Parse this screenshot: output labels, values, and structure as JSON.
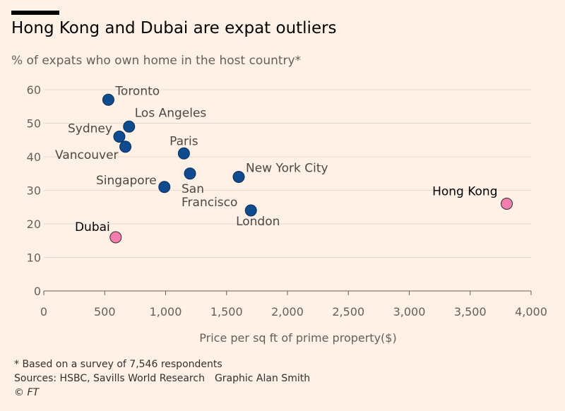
{
  "title": "Hong Kong and Dubai are expat outliers",
  "subtitle": "% of expats who own home in the host country*",
  "footer": {
    "note": "* Based on a survey of 7,546 respondents",
    "sources": "Sources: HSBC, Savills World Research",
    "credit": "Graphic Alan Smith",
    "copyright": "© FT"
  },
  "colors": {
    "background": "#fff1e5",
    "regular_point": "#0f4b8f",
    "outlier_point": "#f27eb0",
    "grid": "#e6d9ce",
    "axis_text": "#66605c"
  },
  "chart_data": {
    "type": "scatter",
    "xlabel": "Price per sq ft of prime property($)",
    "ylabel": "",
    "xlim": [
      0,
      4000
    ],
    "ylim": [
      0,
      60
    ],
    "x_ticks": [
      0,
      500,
      1000,
      1500,
      2000,
      2500,
      3000,
      3500,
      4000
    ],
    "x_tick_labels": [
      "0",
      "500",
      "1,000",
      "1,500",
      "2,000",
      "2,500",
      "3,000",
      "3,500",
      "4,000"
    ],
    "y_ticks": [
      0,
      10,
      20,
      30,
      40,
      50,
      60
    ],
    "y_tick_labels": [
      "0",
      "10",
      "20",
      "30",
      "40",
      "50",
      "60"
    ],
    "grid": true,
    "points": [
      {
        "label": "Toronto",
        "x": 530,
        "y": 57,
        "group": "regular"
      },
      {
        "label": "Los Angeles",
        "x": 700,
        "y": 49,
        "group": "regular"
      },
      {
        "label": "Sydney",
        "x": 620,
        "y": 46,
        "group": "regular"
      },
      {
        "label": "Vancouver",
        "x": 670,
        "y": 43,
        "group": "regular"
      },
      {
        "label": "Paris",
        "x": 1150,
        "y": 41,
        "group": "regular"
      },
      {
        "label": "Singapore",
        "x": 990,
        "y": 31,
        "group": "regular"
      },
      {
        "label": "San Francisco",
        "x": 1200,
        "y": 35,
        "group": "regular"
      },
      {
        "label": "New York City",
        "x": 1600,
        "y": 34,
        "group": "regular"
      },
      {
        "label": "London",
        "x": 1700,
        "y": 24,
        "group": "regular"
      },
      {
        "label": "Dubai",
        "x": 590,
        "y": 16,
        "group": "outlier"
      },
      {
        "label": "Hong Kong",
        "x": 3800,
        "y": 26,
        "group": "outlier"
      }
    ]
  }
}
